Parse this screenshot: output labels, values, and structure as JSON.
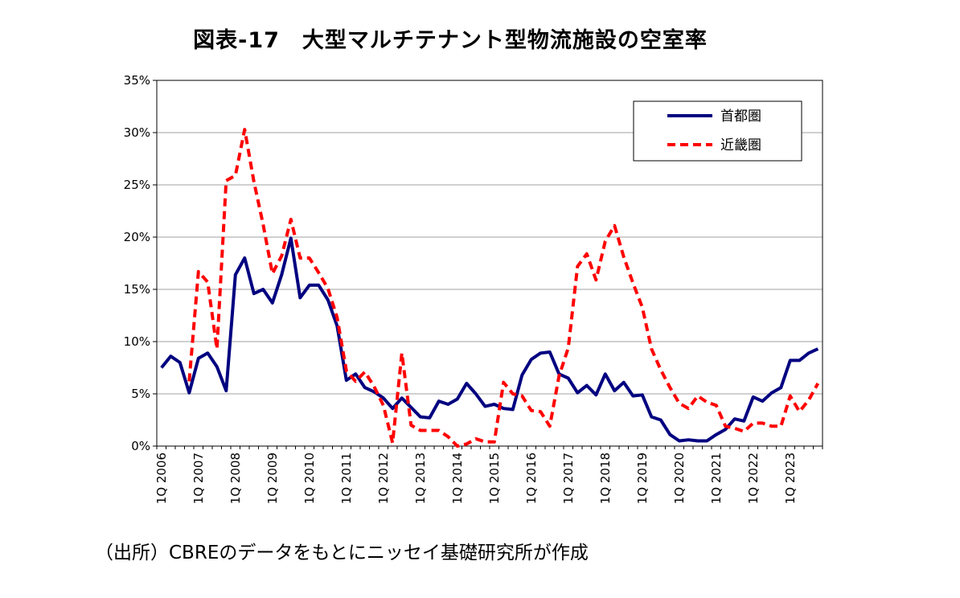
{
  "chart_data": {
    "type": "line",
    "title": "図表-17　大型マルチテナント型物流施設の空室率",
    "xlabel": "",
    "ylabel": "",
    "ylim": [
      0,
      35
    ],
    "y_ticks": [
      "0%",
      "5%",
      "10%",
      "15%",
      "20%",
      "25%",
      "30%",
      "35%"
    ],
    "y_tick_values": [
      0,
      5,
      10,
      15,
      20,
      25,
      30,
      35
    ],
    "x_tick_labels": [
      "1Q 2006",
      "1Q 2007",
      "1Q 2008",
      "1Q 2009",
      "1Q 2010",
      "1Q 2011",
      "1Q 2012",
      "1Q 2013",
      "1Q 2014",
      "1Q 2015",
      "1Q 2016",
      "1Q 2017",
      "1Q 2018",
      "1Q 2019",
      "1Q 2020",
      "1Q 2021",
      "1Q 2022",
      "1Q 2023"
    ],
    "grid": true,
    "legend_position": "top-right",
    "series": [
      {
        "name": "首都圏",
        "color": "#000080",
        "style": "solid",
        "values": [
          7.5,
          8.6,
          8.0,
          5.1,
          8.4,
          8.9,
          7.6,
          5.3,
          16.4,
          18.0,
          14.6,
          15.0,
          13.7,
          16.4,
          19.9,
          14.2,
          15.4,
          15.4,
          14.0,
          11.5,
          6.3,
          6.9,
          5.6,
          5.2,
          4.6,
          3.6,
          4.6,
          3.7,
          2.8,
          2.7,
          4.3,
          4.0,
          4.5,
          6.0,
          5.0,
          3.8,
          4.0,
          3.6,
          3.5,
          6.8,
          8.3,
          8.9,
          9.0,
          6.9,
          6.5,
          5.1,
          5.8,
          4.9,
          6.9,
          5.3,
          6.1,
          4.8,
          4.9,
          2.8,
          2.5,
          1.1,
          0.5,
          0.6,
          0.5,
          0.5,
          1.1,
          1.6,
          2.6,
          2.4,
          4.7,
          4.3,
          5.1,
          5.6,
          8.2,
          8.2,
          8.9,
          9.3
        ]
      },
      {
        "name": "近畿圏",
        "color": "#ff0000",
        "style": "dashed",
        "values": [
          null,
          null,
          null,
          6.2,
          16.7,
          15.7,
          9.3,
          25.4,
          25.9,
          30.3,
          25.3,
          21.2,
          16.5,
          18.2,
          21.7,
          18.0,
          18.0,
          16.6,
          15.1,
          12.3,
          7.2,
          6.2,
          7.1,
          5.7,
          3.9,
          0.3,
          8.9,
          2.0,
          1.5,
          1.5,
          1.5,
          0.9,
          0.0,
          0.2,
          0.7,
          0.4,
          0.4,
          6.1,
          5.0,
          4.8,
          3.4,
          3.3,
          1.9,
          6.7,
          9.4,
          17.2,
          18.4,
          15.9,
          19.6,
          21.1,
          18.1,
          15.6,
          13.3,
          9.3,
          7.3,
          5.6,
          4.1,
          3.6,
          4.8,
          4.2,
          3.9,
          1.9,
          1.7,
          1.4,
          2.2,
          2.2,
          1.9,
          1.9,
          4.8,
          3.3,
          4.4,
          6.0
        ]
      }
    ]
  },
  "source_note": "（出所）CBREのデータをもとにニッセイ基礎研究所が作成"
}
